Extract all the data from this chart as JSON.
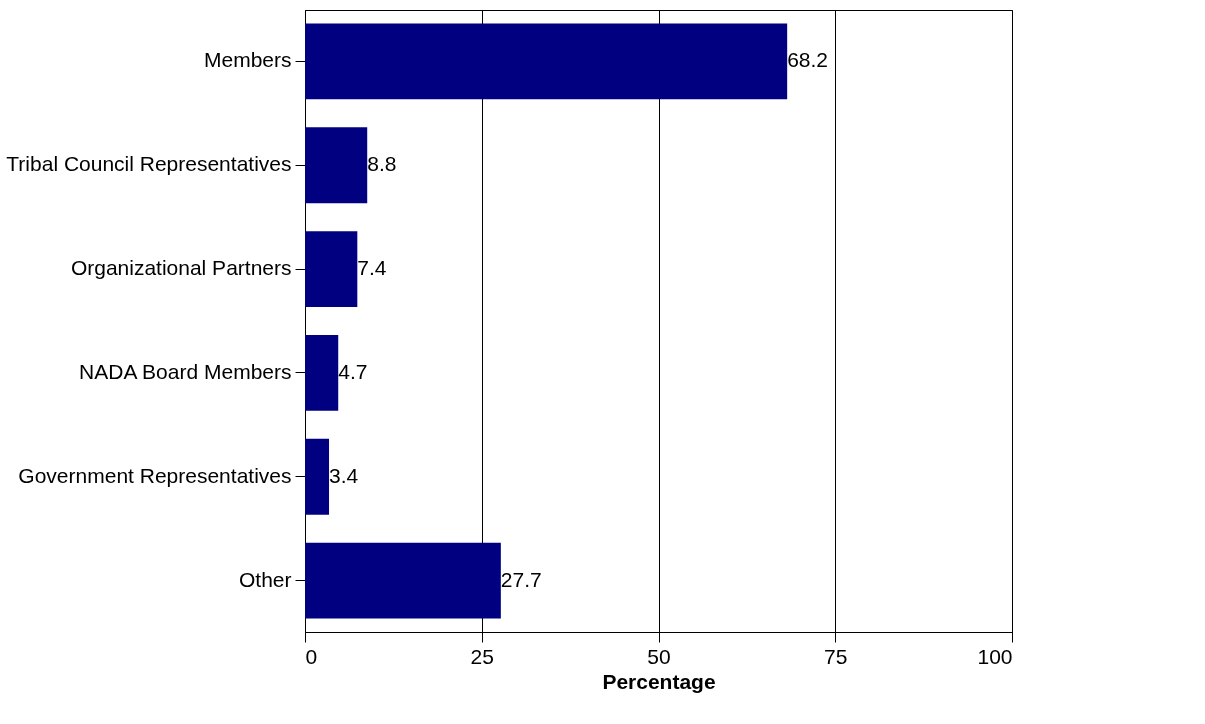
{
  "chart_data": {
    "type": "bar",
    "orientation": "horizontal",
    "xlabel": "Percentage",
    "categories": [
      "Members",
      "Tribal Council Representatives",
      "Organizational Partners",
      "NADA Board Members",
      "Government Representatives",
      "Other"
    ],
    "values": [
      68.2,
      8.8,
      7.4,
      4.7,
      3.4,
      27.7
    ],
    "color": "#000080",
    "xlim": [
      0,
      100
    ],
    "xticks": [
      0,
      25,
      50,
      75,
      100
    ],
    "grid": "x",
    "data_labels": true
  }
}
